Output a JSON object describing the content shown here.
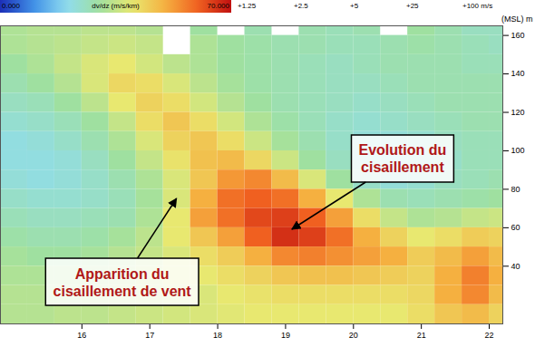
{
  "chart_data": {
    "type": "heatmap",
    "x": [
      15.0,
      15.4,
      15.8,
      16.2,
      16.6,
      17.0,
      17.4,
      17.8,
      18.2,
      18.6,
      19.0,
      19.4,
      19.8,
      20.2,
      20.6,
      21.0,
      21.4,
      21.8,
      22.2
    ],
    "y": [
      165,
      155,
      145,
      135,
      125,
      115,
      105,
      95,
      85,
      75,
      65,
      55,
      45,
      35,
      25,
      15
    ],
    "values": [
      [
        32,
        33,
        33,
        34,
        34,
        33,
        null,
        30,
        null,
        28,
        null,
        28,
        27,
        28,
        null,
        30,
        28,
        26,
        26
      ],
      [
        32,
        33,
        34,
        35,
        36,
        35,
        null,
        32,
        30,
        29,
        28,
        28,
        27,
        27,
        28,
        29,
        28,
        27,
        26
      ],
      [
        30,
        32,
        35,
        38,
        40,
        37,
        34,
        32,
        30,
        29,
        28,
        27,
        26,
        27,
        28,
        28,
        28,
        27,
        27
      ],
      [
        28,
        30,
        33,
        38,
        43,
        42,
        38,
        34,
        31,
        29,
        28,
        27,
        26,
        26,
        27,
        28,
        28,
        28,
        28
      ],
      [
        26,
        27,
        30,
        34,
        40,
        44,
        42,
        37,
        33,
        30,
        28,
        27,
        26,
        25,
        26,
        27,
        28,
        28,
        28
      ],
      [
        24,
        25,
        27,
        30,
        35,
        42,
        46,
        42,
        37,
        32,
        29,
        27,
        25,
        24,
        25,
        26,
        27,
        28,
        28
      ],
      [
        22,
        23,
        25,
        28,
        32,
        38,
        44,
        46,
        42,
        36,
        31,
        28,
        25,
        23,
        23,
        24,
        26,
        27,
        27
      ],
      [
        22,
        22,
        23,
        26,
        30,
        35,
        41,
        47,
        48,
        43,
        36,
        30,
        26,
        23,
        22,
        23,
        25,
        27,
        27
      ],
      [
        23,
        22,
        23,
        25,
        28,
        32,
        38,
        46,
        53,
        55,
        48,
        38,
        30,
        25,
        23,
        24,
        26,
        27,
        28
      ],
      [
        25,
        24,
        24,
        25,
        27,
        31,
        38,
        50,
        58,
        60,
        58,
        50,
        40,
        32,
        28,
        27,
        28,
        29,
        30
      ],
      [
        27,
        26,
        26,
        27,
        28,
        32,
        40,
        52,
        58,
        63,
        64,
        60,
        52,
        42,
        35,
        32,
        33,
        35,
        36
      ],
      [
        29,
        28,
        28,
        29,
        31,
        34,
        40,
        46,
        52,
        60,
        66,
        64,
        58,
        50,
        44,
        40,
        42,
        45,
        44
      ],
      [
        31,
        30,
        30,
        31,
        33,
        35,
        38,
        42,
        45,
        50,
        55,
        56,
        54,
        52,
        50,
        45,
        48,
        52,
        48
      ],
      [
        32,
        32,
        32,
        33,
        34,
        36,
        38,
        40,
        42,
        44,
        46,
        47,
        47,
        46,
        45,
        44,
        50,
        56,
        50
      ],
      [
        33,
        33,
        33,
        34,
        35,
        36,
        37,
        38,
        40,
        41,
        42,
        42,
        42,
        42,
        42,
        43,
        50,
        55,
        48
      ],
      [
        33,
        33,
        34,
        34,
        35,
        36,
        37,
        38,
        39,
        40,
        40,
        40,
        40,
        40,
        40,
        42,
        46,
        48,
        44
      ]
    ],
    "xlim": [
      14.8,
      22.2
    ],
    "xticks": [
      16,
      17,
      18,
      19,
      20,
      21,
      22
    ],
    "ylim": [
      10,
      165
    ],
    "yticks": [
      40,
      60,
      80,
      100,
      120,
      140,
      160
    ],
    "ylabel": "(MSL) m",
    "colorbar": {
      "label": "dv/dz (m/s/km)",
      "range": [
        0,
        70
      ],
      "ticks": [
        {
          "value": 0,
          "label": "0.000"
        },
        {
          "value": 70,
          "label": "70.000"
        }
      ]
    },
    "barb_legend": [
      "+1.25",
      "+2.5",
      "+5",
      "+25",
      "+100 m/s"
    ],
    "annotations": [
      {
        "text": "Apparition du\ncisaillement de vent",
        "x": 17.4,
        "y": 75
      },
      {
        "text": "Evolution du\ncisaillement",
        "x": 19.1,
        "y": 59
      }
    ]
  }
}
